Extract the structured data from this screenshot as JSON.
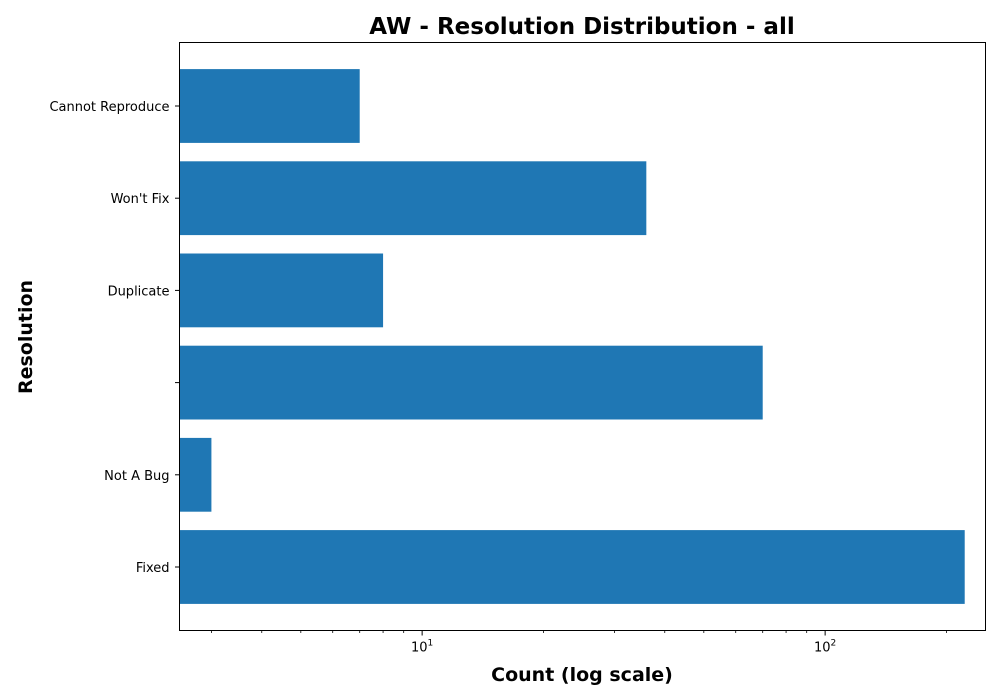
{
  "chart_data": {
    "type": "bar",
    "orientation": "horizontal",
    "title": "AW - Resolution Distribution - all",
    "xlabel": "Count (log scale)",
    "ylabel": "Resolution",
    "x_scale": "log",
    "xlim": [
      2.5,
      250
    ],
    "categories": [
      "Cannot Reproduce",
      "Won't Fix",
      "Duplicate",
      "",
      "Not A Bug",
      "Fixed"
    ],
    "values": [
      7,
      36,
      8,
      70,
      3,
      222
    ],
    "bar_color": "#1f77b4",
    "major_ticks": [
      10,
      100
    ],
    "major_tick_labels": [
      {
        "base": "10",
        "exp": "1"
      },
      {
        "base": "10",
        "exp": "2"
      }
    ],
    "grid": false,
    "legend": "none"
  }
}
